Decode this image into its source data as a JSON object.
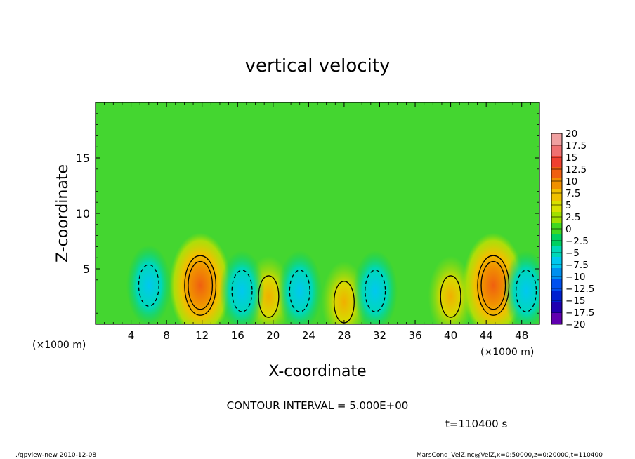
{
  "chart_data": {
    "type": "heatmap",
    "title": "vertical velocity",
    "xlabel": "X-coordinate",
    "ylabel": "Z-coordinate",
    "x_unit_label": "(×1000 m)",
    "y_unit_label": "(×1000 m)",
    "xlim": [
      0,
      50
    ],
    "ylim": [
      0,
      20
    ],
    "x_ticks": [
      4,
      8,
      12,
      16,
      20,
      24,
      28,
      32,
      36,
      40,
      44,
      48
    ],
    "y_ticks": [
      5,
      10,
      15
    ],
    "contour_interval_text": "CONTOUR INTERVAL = 5.000E+00",
    "time_text": "t=110400 s",
    "footer_left": "./gpview-new  2010-12-08",
    "footer_right": "MarsCond_VelZ.nc@VelZ,x=0:50000,z=0:20000,t=110400",
    "colorbar": {
      "labels": [
        "20",
        "17.5",
        "15",
        "12.5",
        "10",
        "7.5",
        "5",
        "2.5",
        "0",
        "-2.5",
        "-5",
        "-7.5",
        "-10",
        "-12.5",
        "-15",
        "-17.5",
        "-20"
      ],
      "colors": [
        "#f0a0a0",
        "#f07070",
        "#f04030",
        "#f06010",
        "#f09000",
        "#f0c000",
        "#d8e000",
        "#a0e000",
        "#40d820",
        "#00d060",
        "#00d8b8",
        "#00c8f0",
        "#0090f0",
        "#0050f0",
        "#0020d0",
        "#2000b0",
        "#6000b0"
      ]
    },
    "features": [
      {
        "type": "updraft",
        "x": 11.8,
        "z": 3.5,
        "peak": 12.5
      },
      {
        "type": "updraft",
        "x": 44.8,
        "z": 3.5,
        "peak": 10
      },
      {
        "type": "updraft",
        "x": 40.0,
        "z": 2.5,
        "peak": 5
      },
      {
        "type": "updraft",
        "x": 28.0,
        "z": 2.0,
        "peak": 5
      },
      {
        "type": "updraft",
        "x": 19.5,
        "z": 2.5,
        "peak": 5
      },
      {
        "type": "downdraft",
        "x": 6.0,
        "z": 3.5,
        "peak": -7.5
      },
      {
        "type": "downdraft",
        "x": 16.5,
        "z": 3.0,
        "peak": -7.5
      },
      {
        "type": "downdraft",
        "x": 23.0,
        "z": 3.0,
        "peak": -5
      },
      {
        "type": "downdraft",
        "x": 31.5,
        "z": 3.0,
        "peak": -5
      },
      {
        "type": "downdraft",
        "x": 48.5,
        "z": 3.0,
        "peak": -7.5
      }
    ]
  }
}
